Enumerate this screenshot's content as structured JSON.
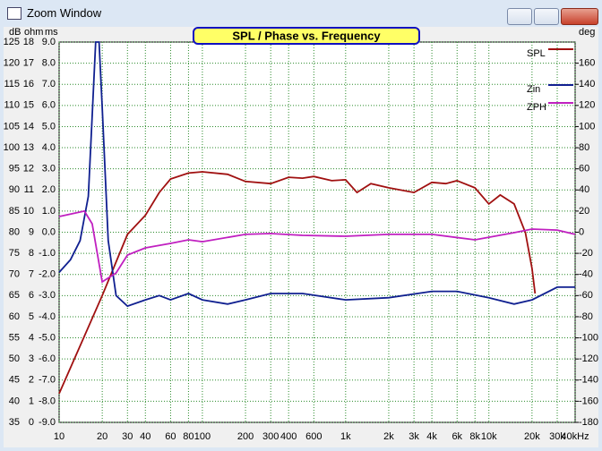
{
  "window": {
    "title": "Zoom Window"
  },
  "chart_data": {
    "type": "line",
    "title": "SPL / Phase vs. Frequency",
    "xscale": "log",
    "xlim": [
      10,
      40000
    ],
    "xticks": [
      10,
      20,
      30,
      40,
      60,
      80,
      100,
      200,
      300,
      400,
      600,
      {
        "value": 1000,
        "label": "1k"
      },
      {
        "value": 2000,
        "label": "2k"
      },
      {
        "value": 3000,
        "label": "3k"
      },
      {
        "value": 4000,
        "label": "4k"
      },
      {
        "value": 6000,
        "label": "6k"
      },
      {
        "value": 8000,
        "label": "8k"
      },
      {
        "value": 10000,
        "label": "10k"
      },
      {
        "value": 20000,
        "label": "20k"
      },
      {
        "value": 30000,
        "label": "30k"
      },
      {
        "value": 40000,
        "label": "40kHz"
      }
    ],
    "ylabel": "dB",
    "ylim": [
      35,
      125
    ],
    "yticks": [
      35,
      40,
      45,
      50,
      55,
      60,
      65,
      70,
      75,
      80,
      85,
      90,
      95,
      100,
      105,
      110,
      115,
      120,
      125
    ],
    "ohm_label": "ohm",
    "ohm_lim": [
      0,
      18
    ],
    "ohm_ticks": [
      0,
      1,
      2,
      3,
      4,
      5,
      6,
      7,
      8,
      9,
      10,
      11,
      12,
      13,
      14,
      15,
      16,
      17,
      18
    ],
    "ms_label": "ms",
    "ms_lim": [
      -9,
      9
    ],
    "ms_ticks": [
      {
        "value": -9,
        "label": "-9.0"
      },
      {
        "value": -8,
        "label": "-8.0"
      },
      {
        "value": -7,
        "label": "-7.0"
      },
      {
        "value": -6,
        "label": "-6.0"
      },
      {
        "value": -5,
        "label": "-5.0"
      },
      {
        "value": -4,
        "label": "-4.0"
      },
      {
        "value": -3,
        "label": "-3.0"
      },
      {
        "value": -2,
        "label": "-2.0"
      },
      {
        "value": -1,
        "label": "-1.0"
      },
      {
        "value": 0,
        "label": "0.0"
      },
      {
        "value": 1,
        "label": "1.0"
      },
      {
        "value": 2,
        "label": "2.0"
      },
      {
        "value": 3,
        "label": "3.0"
      },
      {
        "value": 4,
        "label": "4.0"
      },
      {
        "value": 5,
        "label": "5.0"
      },
      {
        "value": 6,
        "label": "6.0"
      },
      {
        "value": 7,
        "label": "7.0"
      },
      {
        "value": 8,
        "label": "8.0"
      },
      {
        "value": 9,
        "label": "9.0"
      }
    ],
    "y2label": "deg",
    "y2lim": [
      -180,
      180
    ],
    "y2ticks": [
      -180,
      -160,
      -140,
      -120,
      -100,
      -80,
      -60,
      -40,
      -20,
      0,
      20,
      40,
      60,
      80,
      100,
      120,
      140,
      160
    ],
    "grid": true,
    "series": [
      {
        "name": "SPL",
        "color": "#a01010",
        "axis": "y",
        "x": [
          10,
          20,
          30,
          40,
          50,
          60,
          80,
          100,
          150,
          200,
          300,
          400,
          500,
          600,
          800,
          1000,
          1200,
          1500,
          2000,
          3000,
          4000,
          5000,
          6000,
          8000,
          10000,
          12000,
          15000,
          18000,
          20000,
          21000
        ],
        "values": [
          41.8,
          65,
          79.5,
          84,
          89.4,
          92.6,
          94,
          94.3,
          93.7,
          92,
          91.5,
          93,
          92.8,
          93.2,
          92.2,
          92.4,
          89.4,
          91.5,
          90.5,
          89.4,
          91.8,
          91.5,
          92.2,
          90.5,
          86.7,
          88.8,
          86.7,
          79.9,
          71.4,
          65.5
        ]
      },
      {
        "name": "Zin",
        "color": "#102090",
        "axis": "ohm",
        "x": [
          10,
          12,
          14,
          16,
          17,
          18,
          19,
          20,
          22,
          25,
          30,
          40,
          50,
          60,
          80,
          100,
          150,
          200,
          300,
          500,
          1000,
          2000,
          4000,
          6000,
          10000,
          15000,
          20000,
          30000,
          40000
        ],
        "values": [
          7.1,
          7.7,
          8.6,
          10.7,
          14.5,
          18,
          18,
          14.9,
          8.6,
          6.0,
          5.5,
          5.8,
          6.0,
          5.8,
          6.1,
          5.8,
          5.6,
          5.8,
          6.1,
          6.1,
          5.8,
          5.9,
          6.2,
          6.2,
          5.9,
          5.6,
          5.8,
          6.4,
          6.4
        ]
      },
      {
        "name": "ZPH",
        "color": "#c020c0",
        "axis": "y2",
        "x": [
          10,
          15,
          17,
          20,
          25,
          30,
          40,
          60,
          80,
          100,
          200,
          300,
          500,
          1000,
          2000,
          4000,
          8000,
          15000,
          20000,
          30000,
          40000
        ],
        "values": [
          14.8,
          20,
          8,
          -47,
          -38.5,
          -21.6,
          -14.8,
          -10.6,
          -7.2,
          -9,
          -2,
          -1.3,
          -3,
          -3.8,
          -2,
          -2,
          -7.2,
          -0.4,
          3,
          2,
          -2
        ]
      }
    ]
  }
}
